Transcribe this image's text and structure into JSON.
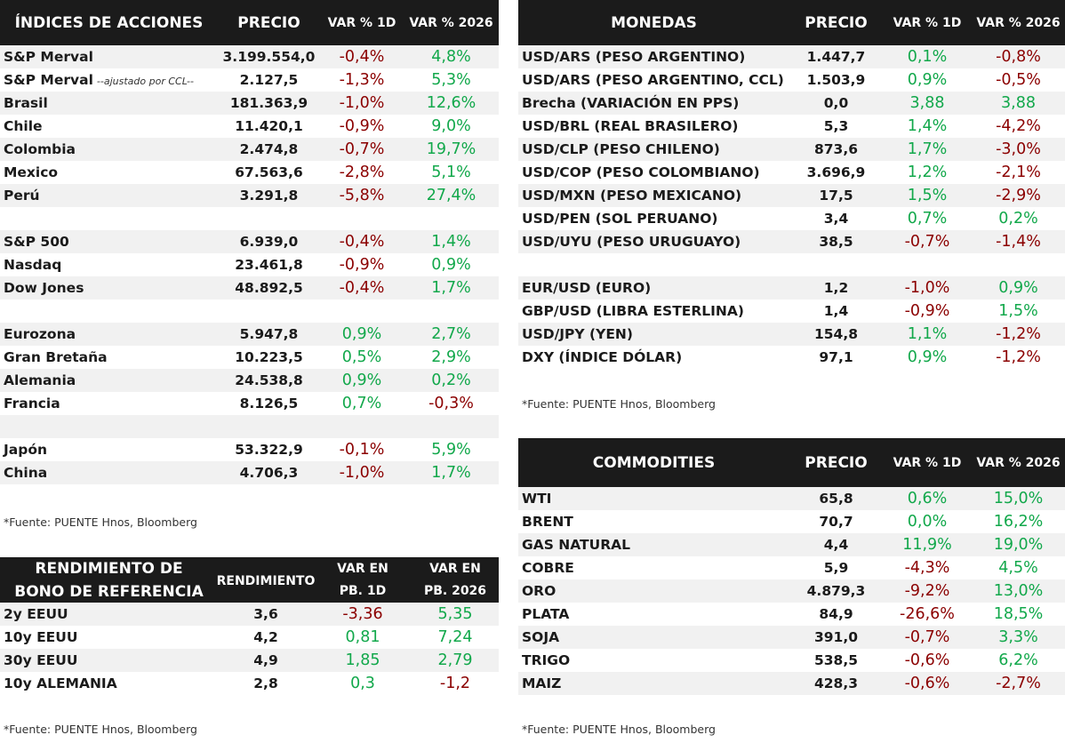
{
  "equities": {
    "headers": {
      "name": "ÍNDICES DE ACCIONES",
      "price": "PRECIO",
      "d1": "VAR % 1D",
      "ytd": "VAR % 2026"
    },
    "rows": [
      {
        "name": "S&P Merval",
        "price": "3.199.554,0",
        "d1": "-0,4%",
        "ytd": "4,8%"
      },
      {
        "name": "S&P Merval",
        "note": "--ajustado por CCL--",
        "price": "2.127,5",
        "d1": "-1,3%",
        "ytd": "5,3%"
      },
      {
        "name": "Brasil",
        "price": "181.363,9",
        "d1": "-1,0%",
        "ytd": "12,6%"
      },
      {
        "name": "Chile",
        "price": "11.420,1",
        "d1": "-0,9%",
        "ytd": "9,0%"
      },
      {
        "name": "Colombia",
        "price": "2.474,8",
        "d1": "-0,7%",
        "ytd": "19,7%"
      },
      {
        "name": "Mexico",
        "price": "67.563,6",
        "d1": "-2,8%",
        "ytd": "5,1%"
      },
      {
        "name": "Perú",
        "price": "3.291,8",
        "d1": "-5,8%",
        "ytd": "27,4%"
      },
      {
        "blank": true
      },
      {
        "name": "S&P 500",
        "price": "6.939,0",
        "d1": "-0,4%",
        "ytd": "1,4%"
      },
      {
        "name": "Nasdaq",
        "price": "23.461,8",
        "d1": "-0,9%",
        "ytd": "0,9%"
      },
      {
        "name": "Dow Jones",
        "price": "48.892,5",
        "d1": "-0,4%",
        "ytd": "1,7%"
      },
      {
        "blank": true
      },
      {
        "name": "Eurozona",
        "price": "5.947,8",
        "d1": "0,9%",
        "ytd": "2,7%"
      },
      {
        "name": "Gran Bretaña",
        "price": "10.223,5",
        "d1": "0,5%",
        "ytd": "2,9%"
      },
      {
        "name": "Alemania",
        "price": "24.538,8",
        "d1": "0,9%",
        "ytd": "0,2%"
      },
      {
        "name": "Francia",
        "price": "8.126,5",
        "d1": "0,7%",
        "ytd": "-0,3%"
      },
      {
        "blank": true
      },
      {
        "name": "Japón",
        "price": "53.322,9",
        "d1": "-0,1%",
        "ytd": "5,9%"
      },
      {
        "name": "China",
        "price": "4.706,3",
        "d1": "-1,0%",
        "ytd": "1,7%"
      }
    ],
    "source": "*Fuente: PUENTE Hnos, Bloomberg"
  },
  "bonds": {
    "headers": {
      "name_line1": "RENDIMIENTO DE",
      "name_line2": "BONO DE REFERENCIA",
      "price": "RENDIMIENTO",
      "d1_line1": "VAR EN",
      "d1_line2": "PB. 1D",
      "ytd_line1": "VAR EN",
      "ytd_line2": "PB. 2026"
    },
    "rows": [
      {
        "name": "2y EEUU",
        "price": "3,6",
        "d1": "-3,36",
        "ytd": "5,35"
      },
      {
        "name": "10y EEUU",
        "price": "4,2",
        "d1": "0,81",
        "ytd": "7,24"
      },
      {
        "name": "30y EEUU",
        "price": "4,9",
        "d1": "1,85",
        "ytd": "2,79"
      },
      {
        "name": "10y ALEMANIA",
        "price": "2,8",
        "d1": "0,3",
        "ytd": "-1,2"
      }
    ],
    "source": "*Fuente: PUENTE Hnos, Bloomberg"
  },
  "currencies": {
    "headers": {
      "name": "MONEDAS",
      "price": "PRECIO",
      "d1": "VAR % 1D",
      "ytd": "VAR % 2026"
    },
    "rows": [
      {
        "name": "USD/ARS (PESO ARGENTINO)",
        "price": "1.447,7",
        "d1": "0,1%",
        "ytd": "-0,8%"
      },
      {
        "name": "USD/ARS (PESO ARGENTINO, CCL)",
        "price": "1.503,9",
        "d1": "0,9%",
        "ytd": "-0,5%"
      },
      {
        "name": "Brecha (VARIACIÓN EN PPS)",
        "price": "0,0",
        "d1": "3,88",
        "ytd": "3,88"
      },
      {
        "name": "USD/BRL (REAL BRASILERO)",
        "price": "5,3",
        "d1": "1,4%",
        "ytd": "-4,2%"
      },
      {
        "name": "USD/CLP (PESO CHILENO)",
        "price": "873,6",
        "d1": "1,7%",
        "ytd": "-3,0%"
      },
      {
        "name": "USD/COP (PESO COLOMBIANO)",
        "price": "3.696,9",
        "d1": "1,2%",
        "ytd": "-2,1%"
      },
      {
        "name": "USD/MXN (PESO MEXICANO)",
        "price": "17,5",
        "d1": "1,5%",
        "ytd": "-2,9%"
      },
      {
        "name": "USD/PEN (SOL PERUANO)",
        "price": "3,4",
        "d1": "0,7%",
        "ytd": "0,2%"
      },
      {
        "name": "USD/UYU (PESO URUGUAYO)",
        "price": "38,5",
        "d1": "-0,7%",
        "ytd": "-1,4%"
      },
      {
        "blank": true
      },
      {
        "name": "EUR/USD (EURO)",
        "price": "1,2",
        "d1": "-1,0%",
        "ytd": "0,9%"
      },
      {
        "name": "GBP/USD (LIBRA ESTERLINA)",
        "price": "1,4",
        "d1": "-0,9%",
        "ytd": "1,5%"
      },
      {
        "name": "USD/JPY (YEN)",
        "price": "154,8",
        "d1": "1,1%",
        "ytd": "-1,2%"
      },
      {
        "name": "DXY (ÍNDICE DÓLAR)",
        "price": "97,1",
        "d1": "0,9%",
        "ytd": "-1,2%"
      }
    ],
    "source": "*Fuente: PUENTE Hnos, Bloomberg"
  },
  "commodities": {
    "headers": {
      "name": "COMMODITIES",
      "price": "PRECIO",
      "d1": "VAR % 1D",
      "ytd": "VAR % 2026"
    },
    "rows": [
      {
        "name": "WTI",
        "price": "65,8",
        "d1": "0,6%",
        "ytd": "15,0%"
      },
      {
        "name": "BRENT",
        "price": "70,7",
        "d1": "0,0%",
        "ytd": "16,2%"
      },
      {
        "name": "GAS NATURAL",
        "price": "4,4",
        "d1": "11,9%",
        "ytd": "19,0%"
      },
      {
        "name": "COBRE",
        "price": "5,9",
        "d1": "-4,3%",
        "ytd": "4,5%"
      },
      {
        "name": "ORO",
        "price": "4.879,3",
        "d1": "-9,2%",
        "ytd": "13,0%"
      },
      {
        "name": "PLATA",
        "price": "84,9",
        "d1": "-26,6%",
        "ytd": "18,5%"
      },
      {
        "name": "SOJA",
        "price": "391,0",
        "d1": "-0,7%",
        "ytd": "3,3%"
      },
      {
        "name": "TRIGO",
        "price": "538,5",
        "d1": "-0,6%",
        "ytd": "6,2%"
      },
      {
        "name": "MAIZ",
        "price": "428,3",
        "d1": "-0,6%",
        "ytd": "-2,7%"
      }
    ],
    "source": "*Fuente: PUENTE Hnos, Bloomberg"
  },
  "colors": {
    "positive": "#12a84b",
    "negative": "#8b0000",
    "header_bg": "#1b1b1b",
    "row_shade": "#f1f1f1"
  }
}
